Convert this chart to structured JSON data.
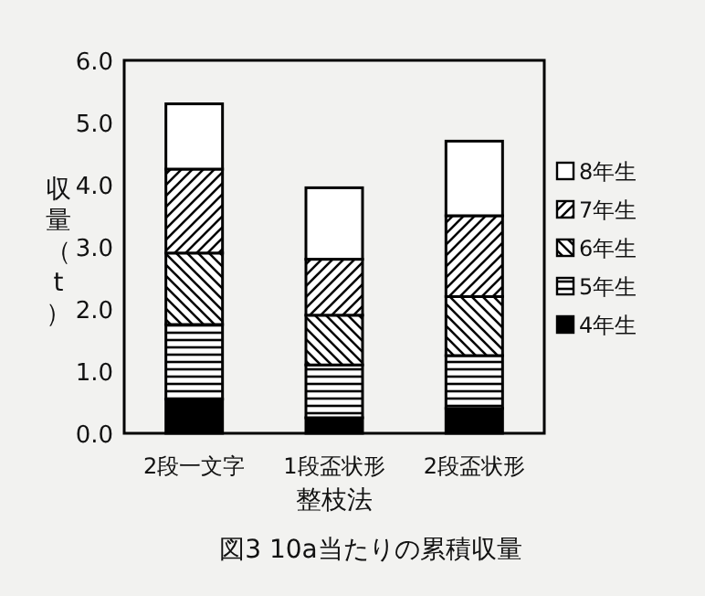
{
  "chart_data": {
    "type": "bar",
    "stacked": true,
    "title": "図3 10a当たりの累積収量",
    "xlabel": "整枝法",
    "ylabel": "収量（t）",
    "categories": [
      "2段一文字",
      "1段盃状形",
      "2段盃状形"
    ],
    "series": [
      {
        "name": "4年生",
        "color": "#000000",
        "values": [
          0.55,
          0.25,
          0.4
        ]
      },
      {
        "name": "5年生",
        "color": "#000000",
        "values": [
          1.2,
          0.85,
          0.85
        ]
      },
      {
        "name": "6年生",
        "color": "#000000",
        "values": [
          1.15,
          0.8,
          0.95
        ]
      },
      {
        "name": "7年生",
        "color": "#000000",
        "values": [
          1.35,
          0.9,
          1.3
        ]
      },
      {
        "name": "8年生",
        "color": "#ffffff",
        "values": [
          1.05,
          1.15,
          1.2
        ]
      }
    ],
    "ylim": [
      0,
      6
    ],
    "yticks": [
      {
        "value": 0,
        "label": "0.0"
      },
      {
        "value": 1,
        "label": "1.0"
      },
      {
        "value": 2,
        "label": "2.0"
      },
      {
        "value": 3,
        "label": "3.0"
      },
      {
        "value": 4,
        "label": "4.0"
      },
      {
        "value": 5,
        "label": "5.0"
      },
      {
        "value": 6,
        "label": "6.0"
      }
    ],
    "legend": "right",
    "grid": false
  }
}
